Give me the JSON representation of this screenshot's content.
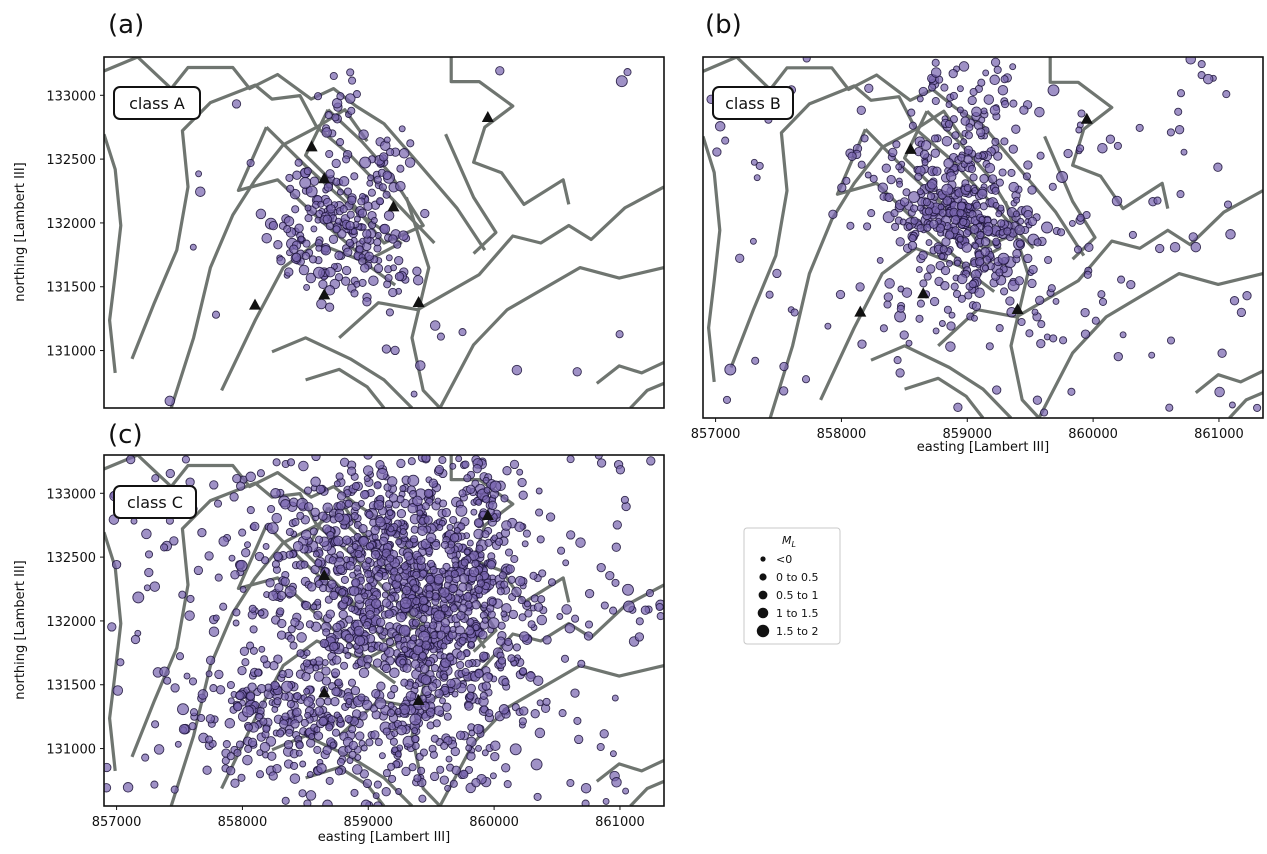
{
  "chart_data": [
    {
      "type": "scatter",
      "panel_label": "(a)",
      "class_label": "class A",
      "ylabel": "northing [Lambert III]",
      "xlabel": "",
      "xticks": [],
      "yticks": [
        "133000",
        "132500",
        "132000",
        "131500",
        "131000"
      ],
      "xlim": [
        856900,
        861350
      ],
      "ylim": [
        130550,
        133300
      ],
      "clusters": [
        {
          "x": 858850,
          "y": 132000,
          "sx": 260,
          "sy": 130,
          "n": 140,
          "angle": -38
        },
        {
          "x": 858450,
          "y": 131800,
          "sx": 160,
          "sy": 110,
          "n": 45,
          "angle": -30
        },
        {
          "x": 859150,
          "y": 132450,
          "sx": 90,
          "sy": 130,
          "n": 30,
          "angle": -30
        },
        {
          "x": 858750,
          "y": 132700,
          "sx": 120,
          "sy": 300,
          "n": 30,
          "angle": 0
        },
        {
          "x": 858800,
          "y": 131550,
          "sx": 200,
          "sy": 70,
          "n": 22,
          "angle": 0
        },
        {
          "x": 859100,
          "y": 131000,
          "sx": 300,
          "sy": 300,
          "n": 12,
          "angle": 0
        }
      ],
      "uniform_points": 14,
      "stations": [
        {
          "x": 858550,
          "y": 132600
        },
        {
          "x": 858650,
          "y": 132350
        },
        {
          "x": 859200,
          "y": 132130
        },
        {
          "x": 859950,
          "y": 132830
        },
        {
          "x": 858650,
          "y": 131440
        },
        {
          "x": 858100,
          "y": 131360
        },
        {
          "x": 859400,
          "y": 131380
        }
      ]
    },
    {
      "type": "scatter",
      "panel_label": "(b)",
      "class_label": "class B",
      "ylabel": "",
      "xlabel": "easting [Lambert III]",
      "xticks": [
        "857000",
        "858000",
        "859000",
        "860000",
        "861000"
      ],
      "yticks": [],
      "xlim": [
        856900,
        861350
      ],
      "ylim": [
        130550,
        133300
      ],
      "clusters": [
        {
          "x": 858900,
          "y": 132050,
          "sx": 330,
          "sy": 170,
          "n": 260,
          "angle": -40
        },
        {
          "x": 858950,
          "y": 132700,
          "sx": 200,
          "sy": 350,
          "n": 110,
          "angle": 0
        },
        {
          "x": 859000,
          "y": 131500,
          "sx": 420,
          "sy": 250,
          "n": 70,
          "angle": 0
        },
        {
          "x": 859300,
          "y": 132150,
          "sx": 600,
          "sy": 500,
          "n": 100,
          "angle": 0
        }
      ],
      "uniform_points": 95,
      "stations": [
        {
          "x": 858550,
          "y": 132600
        },
        {
          "x": 859950,
          "y": 132830
        },
        {
          "x": 858650,
          "y": 131500
        },
        {
          "x": 858150,
          "y": 131360
        },
        {
          "x": 859400,
          "y": 131380
        }
      ]
    },
    {
      "type": "scatter",
      "panel_label": "(c)",
      "class_label": "class C",
      "ylabel": "northing [Lambert III]",
      "xlabel": "easting [Lambert III]",
      "xticks": [
        "857000",
        "858000",
        "859000",
        "860000",
        "861000"
      ],
      "yticks": [
        "133000",
        "132500",
        "132000",
        "131500",
        "131000"
      ],
      "xlim": [
        856900,
        861350
      ],
      "ylim": [
        130550,
        133300
      ],
      "clusters": [
        {
          "x": 859300,
          "y": 132400,
          "sx": 450,
          "sy": 500,
          "n": 620,
          "angle": 0
        },
        {
          "x": 859650,
          "y": 131950,
          "sx": 350,
          "sy": 400,
          "n": 340,
          "angle": 0
        },
        {
          "x": 858300,
          "y": 131300,
          "sx": 350,
          "sy": 250,
          "n": 190,
          "angle": 0
        },
        {
          "x": 858600,
          "y": 132400,
          "sx": 450,
          "sy": 400,
          "n": 160,
          "angle": 0
        },
        {
          "x": 859200,
          "y": 131100,
          "sx": 450,
          "sy": 300,
          "n": 170,
          "angle": 0
        },
        {
          "x": 859950,
          "y": 133000,
          "sx": 70,
          "sy": 130,
          "n": 30,
          "angle": 0
        }
      ],
      "uniform_points": 300,
      "stations": [
        {
          "x": 858650,
          "y": 132360
        },
        {
          "x": 859950,
          "y": 132830
        },
        {
          "x": 858650,
          "y": 131440
        },
        {
          "x": 859400,
          "y": 131380
        }
      ]
    }
  ],
  "legend": {
    "title": "M",
    "title_subscript": "L",
    "entries": [
      "<0",
      "0 to 0.5",
      "0.5 to 1",
      "1 to 1.5",
      "1.5 to 2"
    ],
    "placement": "right of panel (c)"
  },
  "colors": {
    "point_fill": "#7a66b0",
    "point_edge": "#1b1238",
    "boundary": "#6f7570",
    "station": "#111111"
  }
}
